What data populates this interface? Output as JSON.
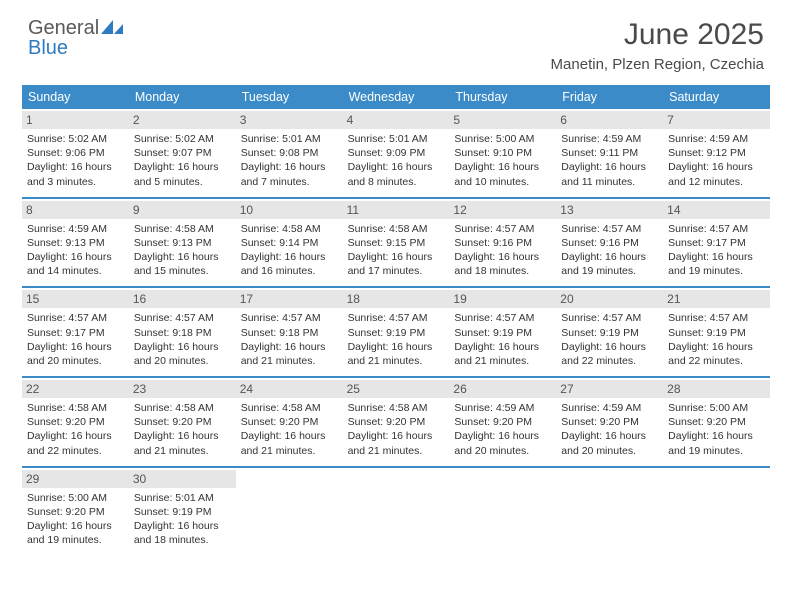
{
  "logo": {
    "word1": "General",
    "word2": "Blue"
  },
  "title": "June 2025",
  "location": "Manetin, Plzen Region, Czechia",
  "colors": {
    "header_bg": "#3b8bc9",
    "header_text": "#ffffff",
    "daynum_bg": "#e6e6e6",
    "rule": "#3b8bc9",
    "logo_gray": "#5a5a5a",
    "logo_blue": "#2f7bbf",
    "text": "#333333"
  },
  "day_names": [
    "Sunday",
    "Monday",
    "Tuesday",
    "Wednesday",
    "Thursday",
    "Friday",
    "Saturday"
  ],
  "weeks": [
    [
      {
        "n": "1",
        "sr": "Sunrise: 5:02 AM",
        "ss": "Sunset: 9:06 PM",
        "dl1": "Daylight: 16 hours",
        "dl2": "and 3 minutes."
      },
      {
        "n": "2",
        "sr": "Sunrise: 5:02 AM",
        "ss": "Sunset: 9:07 PM",
        "dl1": "Daylight: 16 hours",
        "dl2": "and 5 minutes."
      },
      {
        "n": "3",
        "sr": "Sunrise: 5:01 AM",
        "ss": "Sunset: 9:08 PM",
        "dl1": "Daylight: 16 hours",
        "dl2": "and 7 minutes."
      },
      {
        "n": "4",
        "sr": "Sunrise: 5:01 AM",
        "ss": "Sunset: 9:09 PM",
        "dl1": "Daylight: 16 hours",
        "dl2": "and 8 minutes."
      },
      {
        "n": "5",
        "sr": "Sunrise: 5:00 AM",
        "ss": "Sunset: 9:10 PM",
        "dl1": "Daylight: 16 hours",
        "dl2": "and 10 minutes."
      },
      {
        "n": "6",
        "sr": "Sunrise: 4:59 AM",
        "ss": "Sunset: 9:11 PM",
        "dl1": "Daylight: 16 hours",
        "dl2": "and 11 minutes."
      },
      {
        "n": "7",
        "sr": "Sunrise: 4:59 AM",
        "ss": "Sunset: 9:12 PM",
        "dl1": "Daylight: 16 hours",
        "dl2": "and 12 minutes."
      }
    ],
    [
      {
        "n": "8",
        "sr": "Sunrise: 4:59 AM",
        "ss": "Sunset: 9:13 PM",
        "dl1": "Daylight: 16 hours",
        "dl2": "and 14 minutes."
      },
      {
        "n": "9",
        "sr": "Sunrise: 4:58 AM",
        "ss": "Sunset: 9:13 PM",
        "dl1": "Daylight: 16 hours",
        "dl2": "and 15 minutes."
      },
      {
        "n": "10",
        "sr": "Sunrise: 4:58 AM",
        "ss": "Sunset: 9:14 PM",
        "dl1": "Daylight: 16 hours",
        "dl2": "and 16 minutes."
      },
      {
        "n": "11",
        "sr": "Sunrise: 4:58 AM",
        "ss": "Sunset: 9:15 PM",
        "dl1": "Daylight: 16 hours",
        "dl2": "and 17 minutes."
      },
      {
        "n": "12",
        "sr": "Sunrise: 4:57 AM",
        "ss": "Sunset: 9:16 PM",
        "dl1": "Daylight: 16 hours",
        "dl2": "and 18 minutes."
      },
      {
        "n": "13",
        "sr": "Sunrise: 4:57 AM",
        "ss": "Sunset: 9:16 PM",
        "dl1": "Daylight: 16 hours",
        "dl2": "and 19 minutes."
      },
      {
        "n": "14",
        "sr": "Sunrise: 4:57 AM",
        "ss": "Sunset: 9:17 PM",
        "dl1": "Daylight: 16 hours",
        "dl2": "and 19 minutes."
      }
    ],
    [
      {
        "n": "15",
        "sr": "Sunrise: 4:57 AM",
        "ss": "Sunset: 9:17 PM",
        "dl1": "Daylight: 16 hours",
        "dl2": "and 20 minutes."
      },
      {
        "n": "16",
        "sr": "Sunrise: 4:57 AM",
        "ss": "Sunset: 9:18 PM",
        "dl1": "Daylight: 16 hours",
        "dl2": "and 20 minutes."
      },
      {
        "n": "17",
        "sr": "Sunrise: 4:57 AM",
        "ss": "Sunset: 9:18 PM",
        "dl1": "Daylight: 16 hours",
        "dl2": "and 21 minutes."
      },
      {
        "n": "18",
        "sr": "Sunrise: 4:57 AM",
        "ss": "Sunset: 9:19 PM",
        "dl1": "Daylight: 16 hours",
        "dl2": "and 21 minutes."
      },
      {
        "n": "19",
        "sr": "Sunrise: 4:57 AM",
        "ss": "Sunset: 9:19 PM",
        "dl1": "Daylight: 16 hours",
        "dl2": "and 21 minutes."
      },
      {
        "n": "20",
        "sr": "Sunrise: 4:57 AM",
        "ss": "Sunset: 9:19 PM",
        "dl1": "Daylight: 16 hours",
        "dl2": "and 22 minutes."
      },
      {
        "n": "21",
        "sr": "Sunrise: 4:57 AM",
        "ss": "Sunset: 9:19 PM",
        "dl1": "Daylight: 16 hours",
        "dl2": "and 22 minutes."
      }
    ],
    [
      {
        "n": "22",
        "sr": "Sunrise: 4:58 AM",
        "ss": "Sunset: 9:20 PM",
        "dl1": "Daylight: 16 hours",
        "dl2": "and 22 minutes."
      },
      {
        "n": "23",
        "sr": "Sunrise: 4:58 AM",
        "ss": "Sunset: 9:20 PM",
        "dl1": "Daylight: 16 hours",
        "dl2": "and 21 minutes."
      },
      {
        "n": "24",
        "sr": "Sunrise: 4:58 AM",
        "ss": "Sunset: 9:20 PM",
        "dl1": "Daylight: 16 hours",
        "dl2": "and 21 minutes."
      },
      {
        "n": "25",
        "sr": "Sunrise: 4:58 AM",
        "ss": "Sunset: 9:20 PM",
        "dl1": "Daylight: 16 hours",
        "dl2": "and 21 minutes."
      },
      {
        "n": "26",
        "sr": "Sunrise: 4:59 AM",
        "ss": "Sunset: 9:20 PM",
        "dl1": "Daylight: 16 hours",
        "dl2": "and 20 minutes."
      },
      {
        "n": "27",
        "sr": "Sunrise: 4:59 AM",
        "ss": "Sunset: 9:20 PM",
        "dl1": "Daylight: 16 hours",
        "dl2": "and 20 minutes."
      },
      {
        "n": "28",
        "sr": "Sunrise: 5:00 AM",
        "ss": "Sunset: 9:20 PM",
        "dl1": "Daylight: 16 hours",
        "dl2": "and 19 minutes."
      }
    ],
    [
      {
        "n": "29",
        "sr": "Sunrise: 5:00 AM",
        "ss": "Sunset: 9:20 PM",
        "dl1": "Daylight: 16 hours",
        "dl2": "and 19 minutes."
      },
      {
        "n": "30",
        "sr": "Sunrise: 5:01 AM",
        "ss": "Sunset: 9:19 PM",
        "dl1": "Daylight: 16 hours",
        "dl2": "and 18 minutes."
      },
      null,
      null,
      null,
      null,
      null
    ]
  ]
}
